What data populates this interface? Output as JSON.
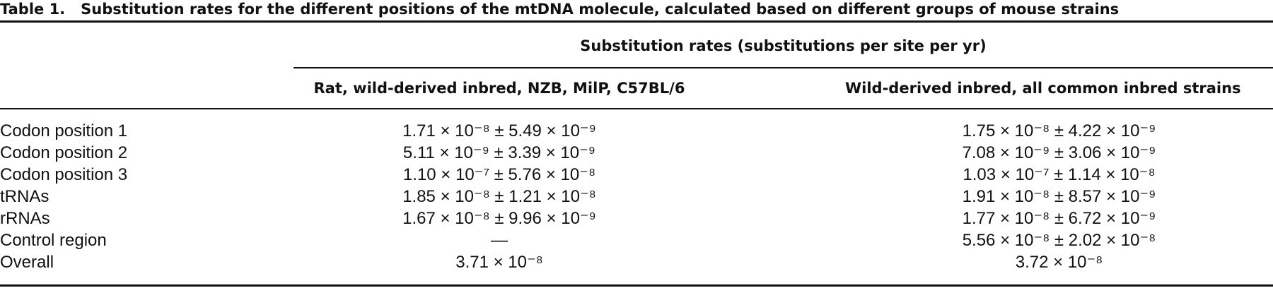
{
  "caption": {
    "label": "Table 1.",
    "text": "Substitution rates for the different positions of the mtDNA molecule, calculated based on different groups of mouse strains"
  },
  "header": {
    "span": "Substitution rates (substitutions per site per yr)",
    "col1": "Rat, wild-derived inbred, NZB, MilP, C57BL/6",
    "col2": "Wild-derived inbred, all common inbred strains"
  },
  "rows": [
    {
      "label": "Codon position 1",
      "v1": "1.71 × 10⁻⁸ ± 5.49 × 10⁻⁹",
      "v2": "1.75 × 10⁻⁸ ± 4.22 × 10⁻⁹"
    },
    {
      "label": "Codon position 2",
      "v1": "5.11 × 10⁻⁹ ± 3.39 × 10⁻⁹",
      "v2": "7.08 × 10⁻⁹ ± 3.06 × 10⁻⁹"
    },
    {
      "label": "Codon position 3",
      "v1": "1.10 × 10⁻⁷ ± 5.76 × 10⁻⁸",
      "v2": "1.03 × 10⁻⁷ ± 1.14 × 10⁻⁸"
    },
    {
      "label": "tRNAs",
      "v1": "1.85 × 10⁻⁸ ± 1.21 × 10⁻⁸",
      "v2": "1.91 × 10⁻⁸ ± 8.57 × 10⁻⁹"
    },
    {
      "label": "rRNAs",
      "v1": "1.67 × 10⁻⁸ ± 9.96 × 10⁻⁹",
      "v2": "1.77 × 10⁻⁸ ± 6.72 × 10⁻⁹"
    },
    {
      "label": "Control region",
      "v1": "—",
      "v2": "5.56 × 10⁻⁸ ± 2.02 × 10⁻⁸"
    },
    {
      "label": "Overall",
      "v1": "3.71 × 10⁻⁸",
      "v2": "3.72 × 10⁻⁸"
    }
  ]
}
